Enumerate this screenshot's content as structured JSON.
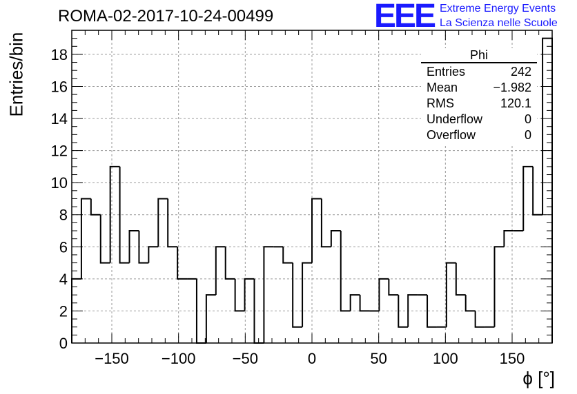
{
  "title": "ROMA-02-2017-10-24-00499",
  "logo": {
    "mark": "EEE",
    "line1": "Extreme Energy Events",
    "line2": "La Scienza nelle Scuole",
    "color": "#1a1aff"
  },
  "stats_box": {
    "title": "Phi",
    "rows": [
      {
        "key": "Entries",
        "value": "242"
      },
      {
        "key": "Mean",
        "value": "−1.982"
      },
      {
        "key": "RMS",
        "value": "120.1"
      },
      {
        "key": "Underflow",
        "value": "0"
      },
      {
        "key": "Overflow",
        "value": "0"
      }
    ]
  },
  "chart_data": {
    "type": "bar",
    "style": "step-histogram",
    "xlabel": "ϕ [°]",
    "ylabel": "Entries/bin",
    "xlim": [
      -180,
      180
    ],
    "ylim": [
      0,
      19.5
    ],
    "grid": true,
    "bin_width": 7.2,
    "bin_edges_start": -180,
    "values": [
      4,
      9,
      8,
      5,
      11,
      5,
      7,
      5,
      6,
      9,
      6,
      4,
      4,
      0,
      3,
      6,
      4,
      2,
      4,
      0,
      6,
      6,
      5,
      1,
      5,
      9,
      6,
      7,
      2,
      3,
      2,
      2,
      4,
      3,
      1,
      3,
      3,
      1,
      1,
      5,
      3,
      2,
      1,
      1,
      6,
      7,
      7,
      11,
      8,
      19
    ],
    "x_ticks": [
      -150,
      -100,
      -50,
      0,
      50,
      100,
      150
    ],
    "y_ticks": [
      0,
      2,
      4,
      6,
      8,
      10,
      12,
      14,
      16,
      18
    ],
    "line_color": "#000000"
  }
}
